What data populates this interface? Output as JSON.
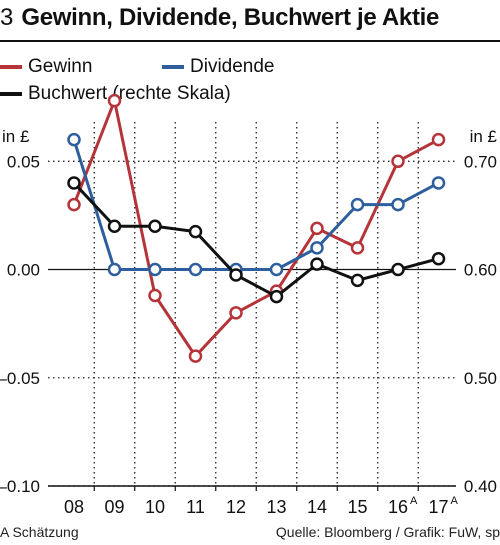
{
  "header": {
    "number": "3",
    "title": "Gewinn, Dividende, Buchwert je Aktie"
  },
  "legend": {
    "items": [
      {
        "label": "Gewinn",
        "color": "#b5343a"
      },
      {
        "label": "Dividende",
        "color": "#2e5e9e"
      },
      {
        "label": "Buchwert (rechte Skala)",
        "color": "#111111"
      }
    ]
  },
  "chart_data": {
    "type": "line",
    "categories": [
      "08",
      "09",
      "10",
      "11",
      "12",
      "13",
      "14",
      "15",
      "16",
      "17"
    ],
    "category_superscripts": [
      "",
      "",
      "",
      "",
      "",
      "",
      "",
      "",
      "A",
      "A"
    ],
    "left_axis": {
      "unit": "in £",
      "ylim": [
        -0.1,
        0.07
      ],
      "ticks": [
        "0.05",
        "0.00",
        "–0.05",
        "–0.10"
      ],
      "tick_values": [
        0.05,
        0.0,
        -0.05,
        -0.1
      ]
    },
    "right_axis": {
      "unit": "in £",
      "ylim": [
        0.4,
        0.74
      ],
      "ticks": [
        "0.70",
        "0.60",
        "0.50",
        "0.40"
      ],
      "tick_values": [
        0.7,
        0.6,
        0.5,
        0.4
      ]
    },
    "grid": "dotted",
    "series": [
      {
        "name": "Gewinn",
        "axis": "left",
        "color": "#b5343a",
        "values": [
          0.03,
          0.078,
          -0.012,
          -0.04,
          -0.02,
          -0.01,
          0.019,
          0.01,
          0.05,
          0.06
        ]
      },
      {
        "name": "Dividende",
        "axis": "left",
        "color": "#2e5e9e",
        "values": [
          0.06,
          0.0,
          0.0,
          0.0,
          0.0,
          0.0,
          0.01,
          0.03,
          0.03,
          0.04
        ]
      },
      {
        "name": "Buchwert (rechte Skala)",
        "axis": "right",
        "color": "#111111",
        "values": [
          0.68,
          0.64,
          0.64,
          0.635,
          0.595,
          0.575,
          0.605,
          0.59,
          0.6,
          0.61
        ]
      }
    ]
  },
  "footer": {
    "note": "A Schätzung",
    "source": "Quelle: Bloomberg / Grafik: FuW, sp"
  }
}
